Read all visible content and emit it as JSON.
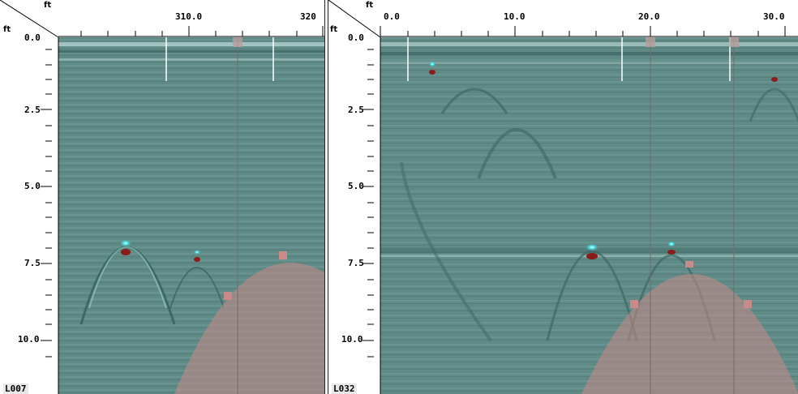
{
  "panels": [
    {
      "id": "A",
      "unit_top": "ft",
      "unit_left": "ft",
      "line_label": "L007",
      "x_ticks": [
        {
          "label": "310.0"
        },
        {
          "label": "320"
        }
      ],
      "y_ticks": [
        {
          "label": "0.0"
        },
        {
          "label": "2.5"
        },
        {
          "label": "5.0"
        },
        {
          "label": "7.5"
        },
        {
          "label": "10.0"
        }
      ]
    },
    {
      "id": "B",
      "unit_top": "ft",
      "unit_left": "ft",
      "line_label": "L032",
      "x_ticks": [
        {
          "label": "0.0"
        },
        {
          "label": "10.0"
        },
        {
          "label": "20.0"
        },
        {
          "label": "30.0"
        }
      ],
      "y_ticks": [
        {
          "label": "0.0"
        },
        {
          "label": "2.5"
        },
        {
          "label": "5.0"
        },
        {
          "label": "7.5"
        },
        {
          "label": "10.0"
        }
      ]
    }
  ],
  "colors": {
    "background": "#5f8a86",
    "positive": "#8ff0ea",
    "negative": "#8a1c1c",
    "overlay": "#c98a8a"
  }
}
